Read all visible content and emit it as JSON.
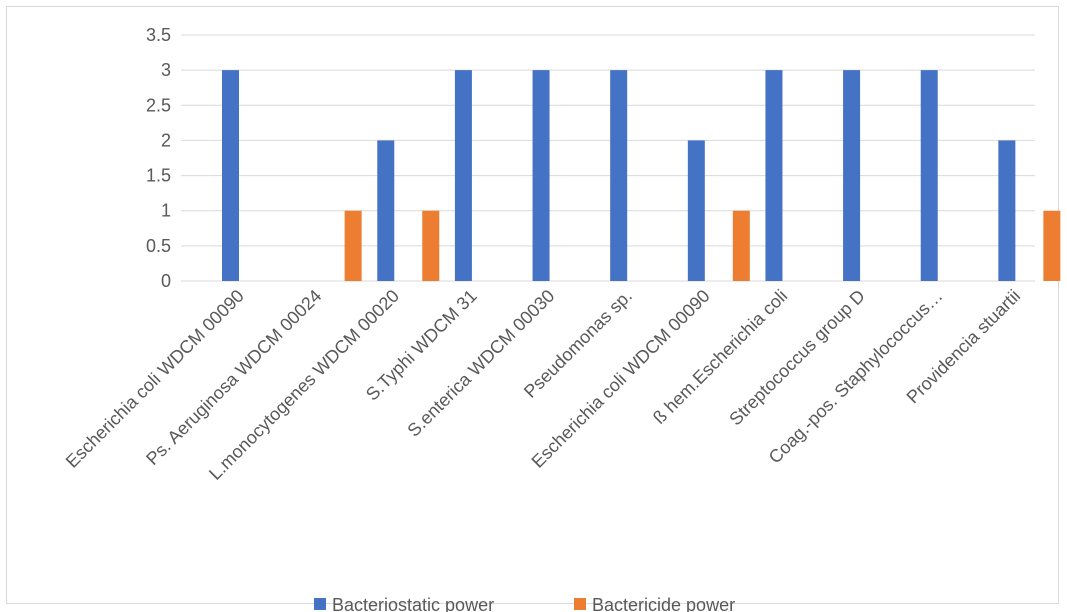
{
  "chart_data": {
    "type": "bar",
    "categories": [
      "Escherichia coli WDCM 00090",
      "Ps. Aeruginosa WDCM 00024",
      "L.monocytogenes WDCM 00020",
      "S.Typhi WDCM 31",
      "S.enterica WDCM 00030",
      "Pseudomonas sp.",
      "Escherichia coli WDCM 00090",
      "ß hem.Escherichia coli",
      "Streptococcus group D",
      "Coag.-pos. Staphylococcus…",
      "Providencia stuartii"
    ],
    "series": [
      {
        "name": "Bacteriostatic power",
        "color": "#4472c4",
        "values": [
          3,
          0,
          2,
          3,
          3,
          3,
          2,
          3,
          3,
          3,
          2
        ]
      },
      {
        "name": "Bactericide power",
        "color": "#ed7d31",
        "values": [
          0,
          1,
          1,
          0,
          0,
          0,
          1,
          0,
          0,
          0,
          1
        ]
      }
    ],
    "yticks": [
      "0",
      "0.5",
      "1",
      "1.5",
      "2",
      "2.5",
      "3",
      "3.5"
    ],
    "ylim": [
      0,
      3.5
    ],
    "grid": true,
    "legend_position": "bottom",
    "title": "",
    "xlabel": "",
    "ylabel": ""
  }
}
